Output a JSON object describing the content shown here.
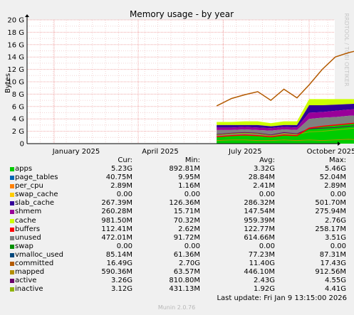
{
  "chart_data": {
    "type": "area",
    "title": "Memory usage - by year",
    "ylabel": "Bytes",
    "watermark": "RRDTOOL / TOBI OETIKER",
    "footer": "Munin 2.0.76",
    "ylim": [
      0,
      20
    ],
    "yticks": [
      "0",
      "2 G",
      "4 G",
      "6 G",
      "8 G",
      "10 G",
      "12 G",
      "14 G",
      "16 G",
      "18 G",
      "20 G"
    ],
    "xlabels": [
      "January 2025",
      "April 2025",
      "July 2025",
      "October 2025"
    ],
    "colors": {
      "background": "#f0f0f0",
      "plot": "#ffffff",
      "grid_major": "#f0a8a8",
      "grid_minor": "#f4d4d4",
      "apps": "#00cc00",
      "page_tables": "#0066b3",
      "per_cpu": "#ff8000",
      "swap_cache": "#ffcc00",
      "slab_cache": "#330099",
      "shmem": "#990099",
      "cache": "#ccff00",
      "buffers": "#ff0000",
      "unused": "#808080",
      "swap": "#008f00",
      "vmalloc_used": "#00487d",
      "committed": "#b35a00",
      "mapped": "#b38f00",
      "active": "#6b006b",
      "inactive": "#8fb300"
    },
    "legend_headers": [
      "Cur:",
      "Min:",
      "Avg:",
      "Max:"
    ],
    "series": [
      {
        "name": "apps",
        "color": "#00cc00",
        "cur": "5.23G",
        "min": "892.81M",
        "avg": "3.32G",
        "max": "5.46G"
      },
      {
        "name": "page_tables",
        "color": "#0066b3",
        "cur": "40.75M",
        "min": "9.95M",
        "avg": "28.84M",
        "max": "52.04M"
      },
      {
        "name": "per_cpu",
        "color": "#ff8000",
        "cur": "2.89M",
        "min": "1.16M",
        "avg": "2.41M",
        "max": "2.89M"
      },
      {
        "name": "swap_cache",
        "color": "#ffcc00",
        "cur": "0.00",
        "min": "0.00",
        "avg": "0.00",
        "max": "0.00"
      },
      {
        "name": "slab_cache",
        "color": "#330099",
        "cur": "267.39M",
        "min": "126.36M",
        "avg": "286.32M",
        "max": "501.70M"
      },
      {
        "name": "shmem",
        "color": "#990099",
        "cur": "260.28M",
        "min": "15.71M",
        "avg": "147.54M",
        "max": "275.94M"
      },
      {
        "name": "cache",
        "color": "#ccff00",
        "cur": "981.50M",
        "min": "70.32M",
        "avg": "959.39M",
        "max": "2.76G"
      },
      {
        "name": "buffers",
        "color": "#ff0000",
        "cur": "112.41M",
        "min": "2.62M",
        "avg": "122.77M",
        "max": "258.17M"
      },
      {
        "name": "unused",
        "color": "#808080",
        "cur": "472.01M",
        "min": "91.72M",
        "avg": "614.66M",
        "max": "3.51G"
      },
      {
        "name": "swap",
        "color": "#008f00",
        "cur": "0.00",
        "min": "0.00",
        "avg": "0.00",
        "max": "0.00"
      },
      {
        "name": "vmalloc_used",
        "color": "#00487d",
        "cur": "85.14M",
        "min": "61.36M",
        "avg": "77.23M",
        "max": "87.31M"
      },
      {
        "name": "committed",
        "color": "#b35a00",
        "cur": "16.49G",
        "min": "2.70G",
        "avg": "11.40G",
        "max": "17.43G"
      },
      {
        "name": "mapped",
        "color": "#b38f00",
        "cur": "590.36M",
        "min": "63.57M",
        "avg": "446.10M",
        "max": "912.56M"
      },
      {
        "name": "active",
        "color": "#6b006b",
        "cur": "3.26G",
        "min": "810.80M",
        "avg": "2.43G",
        "max": "4.55G"
      },
      {
        "name": "inactive",
        "color": "#8fb300",
        "cur": "3.12G",
        "min": "431.13M",
        "avg": "1.92G",
        "max": "4.41G"
      }
    ],
    "timeseries": {
      "x": [
        "2025-06-24",
        "2025-07-10",
        "2025-07-24",
        "2025-08-07",
        "2025-08-21",
        "2025-09-04",
        "2025-09-18",
        "2025-10-01",
        "2025-10-15",
        "2025-10-29",
        "2025-11-12",
        "2025-11-26",
        "2025-12-10",
        "2025-12-24",
        "2026-01-09"
      ],
      "committed": [
        6.1,
        7.3,
        7.9,
        8.4,
        7.0,
        8.8,
        7.4,
        9.5,
        12.0,
        14.0,
        14.7,
        15.2,
        15.6,
        16.1,
        16.4
      ],
      "total": [
        3.5,
        3.5,
        3.6,
        3.6,
        3.3,
        3.6,
        3.6,
        7.2,
        7.2,
        7.2,
        7.2,
        7.2,
        7.2,
        7.2,
        7.2
      ],
      "lower": [
        3.0,
        3.0,
        3.0,
        3.0,
        2.8,
        3.0,
        3.0,
        6.2,
        6.2,
        6.3,
        6.4,
        6.5,
        6.7,
        6.9,
        7.0
      ],
      "cache_bottom": [
        2.6,
        2.6,
        2.7,
        2.6,
        2.5,
        2.7,
        2.6,
        5.0,
        5.1,
        5.3,
        5.5,
        5.6,
        5.8,
        6.0,
        6.1
      ],
      "slab_bottom": [
        2.2,
        2.2,
        2.3,
        2.2,
        2.1,
        2.3,
        2.2,
        4.0,
        4.2,
        4.3,
        4.5,
        4.6,
        4.8,
        5.0,
        5.2
      ],
      "apps": [
        1.1,
        1.3,
        1.4,
        1.3,
        1.1,
        1.4,
        1.3,
        2.5,
        2.8,
        3.0,
        3.2,
        3.4,
        3.6,
        3.9,
        4.2
      ],
      "active": [
        1.5,
        1.7,
        1.8,
        1.7,
        1.4,
        1.8,
        1.6,
        2.4,
        2.5,
        2.6,
        2.8,
        3.0,
        3.1,
        3.2,
        3.3
      ],
      "inactive": [
        1.4,
        1.6,
        1.7,
        1.6,
        1.3,
        1.6,
        1.5,
        1.9,
        2.0,
        2.2,
        2.4,
        2.6,
        2.7,
        2.9,
        3.1
      ],
      "mapped": [
        0.5,
        0.6,
        0.6,
        0.5,
        0.5,
        0.6,
        0.5,
        0.6,
        0.5,
        0.6,
        0.7,
        0.6,
        0.6,
        0.6,
        0.6
      ]
    },
    "last_update": "Last update:  Fri Jan  9 13:15:00 2026"
  }
}
